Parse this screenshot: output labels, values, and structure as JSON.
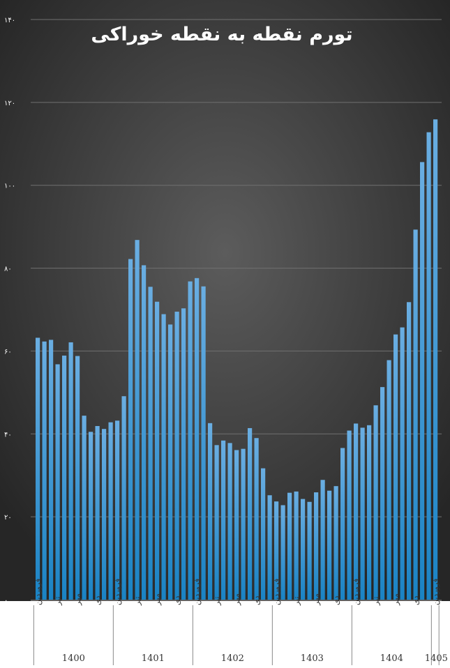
{
  "chart_data": {
    "type": "bar",
    "title": "تورم نقطه به نقطه خوراکی",
    "xlabel": "",
    "ylabel": "",
    "ylim": [
      0,
      140
    ],
    "yticks": [
      0,
      20,
      40,
      60,
      80,
      100,
      120,
      140
    ],
    "ytick_labels": [
      "۰",
      "۲۰",
      "۴۰",
      "۶۰",
      "۸۰",
      "۱۰۰",
      "۱۲۰",
      "۱۴۰"
    ],
    "grid": true,
    "legend": "none",
    "colors": {
      "background_center": "#5c5c5c",
      "background_edge": "#262626",
      "bar_top": "#6aaee2",
      "bar_bottom": "#1a83c4",
      "gridline": "#707070",
      "text": "#ffffff",
      "axis_text": "#333333"
    },
    "years": [
      {
        "label": "1400",
        "start": 0
      },
      {
        "label": "1401",
        "start": 12
      },
      {
        "label": "1402",
        "start": 24
      },
      {
        "label": "1403",
        "start": 36
      },
      {
        "label": "1404",
        "start": 48
      },
      {
        "label": "1405",
        "start": 60
      }
    ],
    "month_labels": [
      "فروردین",
      "تیر",
      "مهر",
      "دی"
    ],
    "month_label_offsets": [
      0,
      3,
      6,
      9
    ],
    "values": [
      63.2,
      62.3,
      62.7,
      56.8,
      58.9,
      62.1,
      58.8,
      44.4,
      40.5,
      41.9,
      41.2,
      42.8,
      43.2,
      49.1,
      82.2,
      86.8,
      80.7,
      75.5,
      71.9,
      68.9,
      66.4,
      69.5,
      70.3,
      76.8,
      77.6,
      75.6,
      42.6,
      37.3,
      38.4,
      37.8,
      36.1,
      36.4,
      41.4,
      39.0,
      31.7,
      25.2,
      23.7,
      22.8,
      25.8,
      26.1,
      24.3,
      23.6,
      25.9,
      28.9,
      26.3,
      27.4,
      36.6,
      40.8,
      42.5,
      41.5,
      42.1,
      46.9,
      51.3,
      57.8,
      64.0,
      65.7,
      71.8,
      89.3,
      105.6,
      112.8,
      115.9
    ]
  }
}
